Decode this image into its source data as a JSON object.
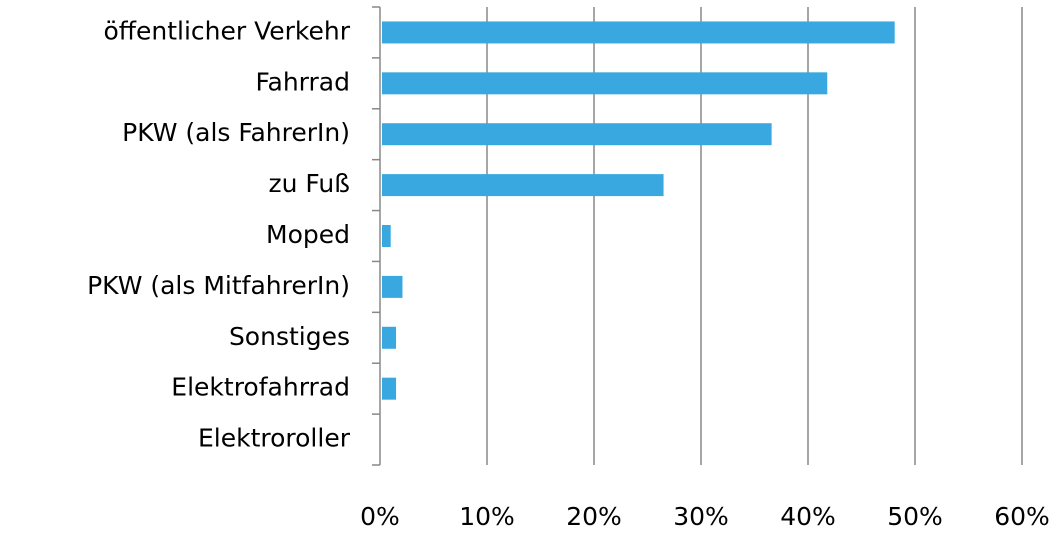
{
  "chart_data": {
    "type": "barh",
    "categories": [
      "öffentlicher Verkehr",
      "Fahrrad",
      "PKW (als FahrerIn)",
      "zu Fuß",
      "Moped",
      "PKW (als MitfahrerIn)",
      "Sonstiges",
      "Elektrofahrrad",
      "Elektroroller"
    ],
    "values": [
      48.1,
      41.8,
      36.6,
      26.5,
      1.0,
      2.1,
      1.5,
      1.5,
      0
    ],
    "color": "#3aa8e0",
    "xlim": [
      0,
      60
    ],
    "xticks": [
      {
        "value": 0,
        "label": "0%"
      },
      {
        "value": 10,
        "label": "10%"
      },
      {
        "value": 20,
        "label": "20%"
      },
      {
        "value": 30,
        "label": "30%"
      },
      {
        "value": 40,
        "label": "40%"
      },
      {
        "value": 50,
        "label": "50%"
      },
      {
        "value": 60,
        "label": "60%"
      }
    ],
    "grid": true
  }
}
